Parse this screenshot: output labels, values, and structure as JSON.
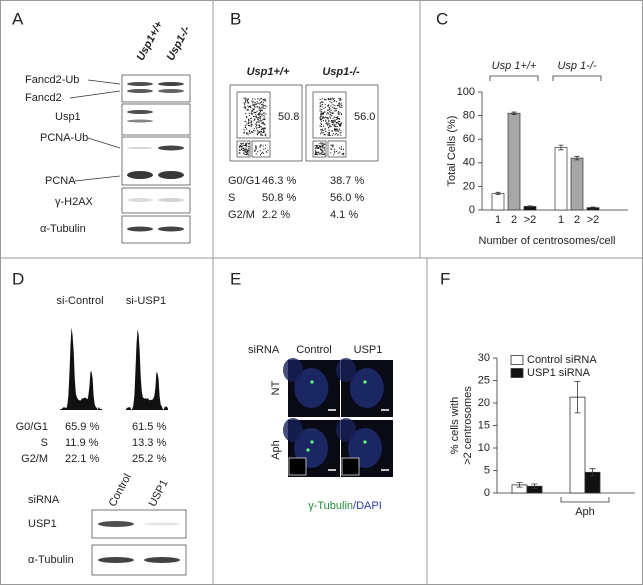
{
  "panel_labels": [
    "A",
    "B",
    "C",
    "D",
    "E",
    "F"
  ],
  "panel_a": {
    "columns": [
      "Usp1+/+",
      "Usp1-/-"
    ],
    "bands": [
      "Fancd2-Ub",
      "Fancd2",
      "Usp1",
      "PCNA-Ub",
      "PCNA",
      "γ-H2AX",
      "α-Tubulin"
    ]
  },
  "panel_b": {
    "columns": [
      "Usp1+/+",
      "Usp1-/-"
    ],
    "gate_values": [
      "50.8",
      "56.0"
    ],
    "rows": [
      [
        "G0/G1",
        "46.3 %",
        "38.7 %"
      ],
      [
        "S",
        "50.8 %",
        "56.0 %"
      ],
      [
        "G2/M",
        "2.2 %",
        "4.1 %"
      ]
    ]
  },
  "panel_d": {
    "columns": [
      "si-Control",
      "si-USP1"
    ],
    "rows": [
      [
        "G0/G1",
        "65.9 %",
        "61.5 %"
      ],
      [
        "S",
        "11.9 %",
        "13.3 %"
      ],
      [
        "G2/M",
        "22.1 %",
        "25.2 %"
      ]
    ],
    "blot_header": "siRNA",
    "blot_columns": [
      "Control",
      "USP1"
    ],
    "blot_bands": [
      "USP1",
      "α-Tubulin"
    ]
  },
  "panel_e": {
    "header": "siRNA",
    "columns": [
      "Control",
      "USP1"
    ],
    "rows": [
      "NT",
      "Aph"
    ],
    "caption": [
      "γ-Tubulin",
      "/DAPI"
    ]
  },
  "chart_data": [
    {
      "type": "bar",
      "ylabel": [
        "Total Cells (%)"
      ],
      "xlabel": "Number of centrosomes/cell",
      "categories": [
        "1",
        "2",
        ">2"
      ],
      "colors": [
        "#ffffff",
        "#a6a6a6",
        "#111111"
      ],
      "series": [
        {
          "name": "Usp 1+/+",
          "values": [
            14,
            82,
            3
          ],
          "errors": [
            1,
            1,
            0.5
          ]
        },
        {
          "name": "Usp 1-/-",
          "values": [
            53,
            44,
            2
          ],
          "errors": [
            2,
            1.5,
            0.5
          ]
        }
      ],
      "ylim": [
        0,
        100
      ],
      "yticks": [
        0,
        20,
        40,
        60,
        80,
        100
      ]
    },
    {
      "type": "bar",
      "ylabel": [
        "% cells with",
        ">2 centrosomes"
      ],
      "categories": [
        null,
        "Aph"
      ],
      "series": [
        {
          "name": "Control siRNA",
          "color": "#ffffff",
          "values": [
            1.8,
            21.3
          ],
          "errors": [
            0.5,
            3.5
          ]
        },
        {
          "name": "USP1 siRNA",
          "color": "#111111",
          "values": [
            1.5,
            4.6
          ],
          "errors": [
            0.5,
            0.8
          ]
        }
      ],
      "ylim": [
        0,
        30
      ],
      "yticks": [
        0,
        5,
        10,
        15,
        20,
        25,
        30
      ],
      "legend": "top-left"
    }
  ]
}
